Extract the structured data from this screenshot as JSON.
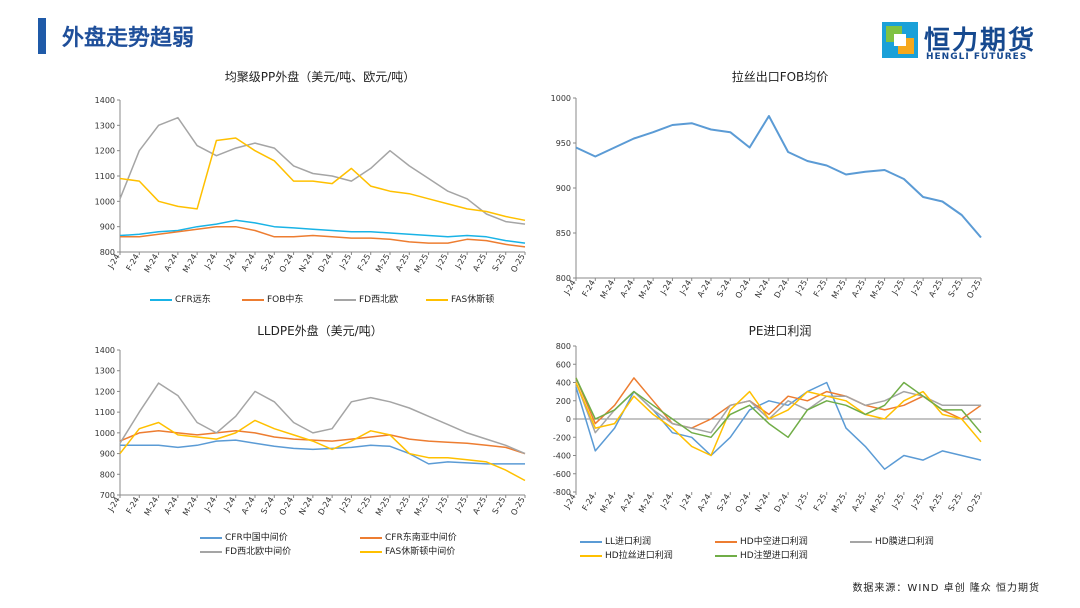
{
  "page": {
    "title": "外盘走势趋弱",
    "source": "数据来源：WIND  卓创  隆众  恒力期货"
  },
  "logo": {
    "name": "恒力期货",
    "sub": "HENGLI FUTURES"
  },
  "chart_data": [
    {
      "id": "pp",
      "type": "line",
      "title": "均聚级PP外盘（美元/吨、欧元/吨）",
      "ylim": [
        800,
        1400
      ],
      "yticks": [
        800,
        900,
        1000,
        1100,
        1200,
        1300,
        1400
      ],
      "categories": [
        "J-24",
        "F-24",
        "M-24",
        "A-24",
        "M-24",
        "J-24",
        "J-24",
        "A-24",
        "S-24",
        "O-24",
        "N-24",
        "D-24",
        "J-25",
        "F-25",
        "M-25",
        "A-25",
        "M-25",
        "J-25",
        "J-25",
        "A-25",
        "S-25",
        "O-25"
      ],
      "series": [
        {
          "name": "CFR远东",
          "color": "#19b3e6",
          "values": [
            865,
            870,
            880,
            885,
            900,
            910,
            925,
            915,
            900,
            895,
            890,
            885,
            880,
            880,
            875,
            870,
            865,
            860,
            865,
            860,
            845,
            835
          ]
        },
        {
          "name": "FOB中东",
          "color": "#ed7d31",
          "values": [
            860,
            860,
            870,
            880,
            890,
            900,
            900,
            885,
            860,
            860,
            865,
            860,
            855,
            855,
            850,
            840,
            835,
            835,
            850,
            845,
            830,
            820
          ]
        },
        {
          "name": "FD西北欧",
          "color": "#a5a5a5",
          "values": [
            1010,
            1200,
            1300,
            1330,
            1220,
            1180,
            1210,
            1230,
            1210,
            1140,
            1110,
            1100,
            1080,
            1130,
            1200,
            1140,
            1090,
            1040,
            1010,
            950,
            920,
            910
          ]
        },
        {
          "name": "FAS休斯顿",
          "color": "#ffc000",
          "values": [
            1090,
            1080,
            1000,
            980,
            970,
            1240,
            1250,
            1200,
            1160,
            1080,
            1080,
            1070,
            1130,
            1060,
            1040,
            1030,
            1010,
            990,
            970,
            960,
            940,
            925
          ]
        }
      ]
    },
    {
      "id": "fob",
      "type": "line",
      "title": "拉丝出口FOB均价",
      "ylim": [
        800,
        1000
      ],
      "yticks": [
        800,
        850,
        900,
        950,
        1000
      ],
      "categories": [
        "J-24",
        "F-24",
        "M-24",
        "A-24",
        "M-24",
        "J-24",
        "J-24",
        "A-24",
        "S-24",
        "O-24",
        "N-24",
        "D-24",
        "J-25",
        "F-25",
        "M-25",
        "A-25",
        "M-25",
        "J-25",
        "J-25",
        "A-25",
        "S-25",
        "O-25"
      ],
      "series": [
        {
          "name": "拉丝出口FOB均价",
          "color": "#5b9bd5",
          "values": [
            945,
            935,
            945,
            955,
            962,
            970,
            972,
            965,
            962,
            945,
            980,
            940,
            930,
            925,
            915,
            918,
            920,
            910,
            890,
            885,
            870,
            845
          ]
        }
      ]
    },
    {
      "id": "lldpe",
      "type": "line",
      "title": "LLDPE外盘（美元/吨）",
      "ylim": [
        700,
        1400
      ],
      "yticks": [
        700,
        800,
        900,
        1000,
        1100,
        1200,
        1300,
        1400
      ],
      "categories": [
        "J-24",
        "F-24",
        "M-24",
        "A-24",
        "M-24",
        "J-24",
        "J-24",
        "A-24",
        "S-24",
        "O-24",
        "N-24",
        "D-24",
        "J-25",
        "F-25",
        "M-25",
        "A-25",
        "M-25",
        "J-25",
        "J-25",
        "A-25",
        "S-25",
        "O-25"
      ],
      "series": [
        {
          "name": "CFR中国中间价",
          "color": "#5b9bd5",
          "values": [
            940,
            940,
            940,
            930,
            940,
            960,
            965,
            950,
            935,
            925,
            920,
            925,
            930,
            940,
            935,
            900,
            850,
            860,
            855,
            850,
            850,
            850
          ]
        },
        {
          "name": "CFR东南亚中间价",
          "color": "#ed7d31",
          "values": [
            960,
            1000,
            1010,
            1000,
            990,
            1000,
            1010,
            1000,
            980,
            970,
            965,
            960,
            970,
            980,
            990,
            970,
            960,
            955,
            950,
            940,
            930,
            900
          ]
        },
        {
          "name": "FD西北欧中间价",
          "color": "#a5a5a5",
          "values": [
            950,
            1100,
            1240,
            1180,
            1050,
            1000,
            1080,
            1200,
            1150,
            1050,
            1000,
            1020,
            1150,
            1170,
            1150,
            1120,
            1080,
            1040,
            1000,
            970,
            940,
            900
          ]
        },
        {
          "name": "FAS休斯顿中间价",
          "color": "#ffc000",
          "values": [
            900,
            1020,
            1050,
            990,
            980,
            970,
            1000,
            1060,
            1020,
            990,
            960,
            920,
            960,
            1010,
            990,
            900,
            880,
            880,
            870,
            860,
            820,
            770
          ]
        }
      ]
    },
    {
      "id": "pe",
      "type": "line",
      "title": "PE进口利润",
      "ylim": [
        -800,
        800
      ],
      "yticks": [
        -800,
        -600,
        -400,
        -200,
        0,
        200,
        400,
        600,
        800
      ],
      "categories": [
        "J-24",
        "F-24",
        "M-24",
        "A-24",
        "M-24",
        "J-24",
        "J-24",
        "A-24",
        "S-24",
        "O-24",
        "N-24",
        "D-24",
        "J-25",
        "F-25",
        "M-25",
        "A-25",
        "M-25",
        "J-25",
        "J-25",
        "A-25",
        "S-25",
        "O-25"
      ],
      "series": [
        {
          "name": "LL进口利润",
          "color": "#5b9bd5",
          "values": [
            350,
            -350,
            -100,
            300,
            100,
            -150,
            -200,
            -400,
            -200,
            100,
            200,
            150,
            300,
            400,
            -100,
            -300,
            -550,
            -400,
            -450,
            -350,
            -400,
            -450
          ]
        },
        {
          "name": "HD中空进口利润",
          "color": "#ed7d31",
          "values": [
            450,
            -50,
            150,
            450,
            200,
            -50,
            -100,
            0,
            150,
            200,
            50,
            250,
            200,
            300,
            250,
            150,
            100,
            150,
            250,
            100,
            0,
            150
          ]
        },
        {
          "name": "HD膜进口利润",
          "color": "#a5a5a5",
          "values": [
            400,
            -150,
            100,
            300,
            100,
            -50,
            -100,
            -150,
            150,
            200,
            0,
            200,
            100,
            250,
            250,
            150,
            200,
            300,
            250,
            150,
            150,
            150
          ]
        },
        {
          "name": "HD拉丝进口利润",
          "color": "#ffc000",
          "values": [
            400,
            -100,
            -50,
            250,
            50,
            -100,
            -300,
            -400,
            100,
            300,
            0,
            100,
            300,
            250,
            200,
            50,
            0,
            200,
            300,
            50,
            0,
            -250
          ]
        },
        {
          "name": "HD注塑进口利润",
          "color": "#70ad47",
          "values": [
            450,
            0,
            100,
            300,
            150,
            0,
            -150,
            -200,
            50,
            150,
            -50,
            -200,
            100,
            200,
            150,
            50,
            150,
            400,
            250,
            100,
            100,
            -150
          ]
        }
      ]
    }
  ]
}
